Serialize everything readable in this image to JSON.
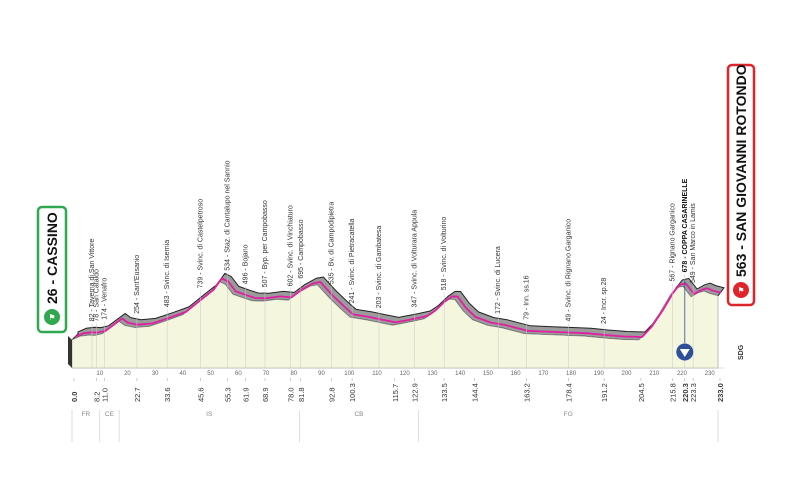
{
  "chart_data": {
    "type": "area",
    "start": {
      "label": "CASSINO",
      "altitude": "26",
      "km": "0.0"
    },
    "finish": {
      "label": "SAN GIOVANNI ROTONDO",
      "altitude": "563",
      "km": "233.0"
    },
    "xlim": [
      0,
      233
    ],
    "ylim": [
      0,
      900
    ],
    "x_ticks": [
      10,
      20,
      30,
      40,
      50,
      60,
      70,
      80,
      90,
      100,
      110,
      120,
      130,
      140,
      150,
      160,
      170,
      180,
      190,
      200,
      210,
      220,
      230
    ],
    "y_ticks": [
      200,
      400,
      600
    ],
    "profile": [
      {
        "km": 0,
        "alt": 26
      },
      {
        "km": 3,
        "alt": 70
      },
      {
        "km": 6,
        "alt": 82
      },
      {
        "km": 8.2,
        "alt": 78
      },
      {
        "km": 11,
        "alt": 100
      },
      {
        "km": 14,
        "alt": 174
      },
      {
        "km": 17,
        "alt": 250
      },
      {
        "km": 19,
        "alt": 200
      },
      {
        "km": 22.7,
        "alt": 174
      },
      {
        "km": 28,
        "alt": 190
      },
      {
        "km": 33.6,
        "alt": 254
      },
      {
        "km": 40,
        "alt": 330
      },
      {
        "km": 45.6,
        "alt": 483
      },
      {
        "km": 50,
        "alt": 600
      },
      {
        "km": 53,
        "alt": 739
      },
      {
        "km": 55.3,
        "alt": 700
      },
      {
        "km": 58,
        "alt": 580
      },
      {
        "km": 61.9,
        "alt": 534
      },
      {
        "km": 65,
        "alt": 500
      },
      {
        "km": 68.9,
        "alt": 496
      },
      {
        "km": 74,
        "alt": 520
      },
      {
        "km": 78,
        "alt": 507
      },
      {
        "km": 81.8,
        "alt": 602
      },
      {
        "km": 86,
        "alt": 680
      },
      {
        "km": 88.5,
        "alt": 695
      },
      {
        "km": 92.8,
        "alt": 535
      },
      {
        "km": 97,
        "alt": 400
      },
      {
        "km": 100.3,
        "alt": 300
      },
      {
        "km": 106,
        "alt": 270
      },
      {
        "km": 110,
        "alt": 241
      },
      {
        "km": 115.7,
        "alt": 203
      },
      {
        "km": 122.9,
        "alt": 250
      },
      {
        "km": 127,
        "alt": 280
      },
      {
        "km": 130,
        "alt": 347
      },
      {
        "km": 133.5,
        "alt": 460
      },
      {
        "km": 136,
        "alt": 520
      },
      {
        "km": 138,
        "alt": 518
      },
      {
        "km": 141,
        "alt": 380
      },
      {
        "km": 144.4,
        "alt": 270
      },
      {
        "km": 150,
        "alt": 200
      },
      {
        "km": 155,
        "alt": 172
      },
      {
        "km": 163.2,
        "alt": 100
      },
      {
        "km": 170,
        "alt": 90
      },
      {
        "km": 178.4,
        "alt": 79
      },
      {
        "km": 185,
        "alt": 70
      },
      {
        "km": 191.2,
        "alt": 49
      },
      {
        "km": 198,
        "alt": 30
      },
      {
        "km": 204.5,
        "alt": 24
      },
      {
        "km": 208,
        "alt": 150
      },
      {
        "km": 212,
        "alt": 350
      },
      {
        "km": 215.8,
        "alt": 567
      },
      {
        "km": 218,
        "alt": 660
      },
      {
        "km": 220.3,
        "alt": 678
      },
      {
        "km": 223.3,
        "alt": 549
      },
      {
        "km": 226,
        "alt": 600
      },
      {
        "km": 228,
        "alt": 620
      },
      {
        "km": 230,
        "alt": 590
      },
      {
        "km": 233,
        "alt": 563
      }
    ],
    "waypoints": [
      {
        "km": 6.5,
        "label": "82 - Taverna di San Vittore"
      },
      {
        "km": 8.2,
        "label": "78 - San Cataldo"
      },
      {
        "km": 11.0,
        "label": "174 - Venafro"
      },
      {
        "km": 22.7,
        "label": "254 - Sant'Eusanio"
      },
      {
        "km": 33.6,
        "label": "483 - Svinc. di Isernia"
      },
      {
        "km": 45.6,
        "label": "739 - Svinc. di Castelpetroso"
      },
      {
        "km": 55.3,
        "label": "534 - Staz. di Cantalupo nel Sannio"
      },
      {
        "km": 61.9,
        "label": "496 - Bojano"
      },
      {
        "km": 68.9,
        "label": "507 - Byp. per Campobasso"
      },
      {
        "km": 78.0,
        "label": "602 - Svinc. di Vinchiaturo"
      },
      {
        "km": 81.8,
        "label": "695 - Campobasso"
      },
      {
        "km": 92.8,
        "label": "535 - Bv. di Campodipietra"
      },
      {
        "km": 100.3,
        "label": "241 - Svinc. di Pietracatella"
      },
      {
        "km": 110.0,
        "label": "203 - Svinc. di Gambatesa"
      },
      {
        "km": 122.9,
        "label": "347 - Svinc. di Volturara Appula"
      },
      {
        "km": 133.5,
        "label": "518 - Svinc. di Volturino"
      },
      {
        "km": 153.0,
        "label": "172 - Svinc. di Lucera"
      },
      {
        "km": 163.2,
        "label": "79 - Inn. ss.16"
      },
      {
        "km": 178.4,
        "label": "49 - Svinc. di Rignano Garganico"
      },
      {
        "km": 191.2,
        "label": "24 - Incr. sp.28"
      },
      {
        "km": 215.8,
        "label": "567 - Rignano Garganico"
      },
      {
        "km": 220.3,
        "label": "678 - COPPA CASARINELLE",
        "bold": true
      },
      {
        "km": 223.3,
        "label": "549 - San Marco in Lamis"
      }
    ],
    "km_labels": [
      {
        "km": 0,
        "text": "0.0",
        "bold": true
      },
      {
        "km": 8.2,
        "text": "8.2"
      },
      {
        "km": 11.0,
        "text": "11.0"
      },
      {
        "km": 22.7,
        "text": "22.7"
      },
      {
        "km": 33.6,
        "text": "33.6"
      },
      {
        "km": 45.6,
        "text": "45.6"
      },
      {
        "km": 55.3,
        "text": "55.3"
      },
      {
        "km": 61.9,
        "text": "61.9"
      },
      {
        "km": 68.9,
        "text": "68.9"
      },
      {
        "km": 78.0,
        "text": "78.0"
      },
      {
        "km": 81.8,
        "text": "81.8"
      },
      {
        "km": 92.8,
        "text": "92.8"
      },
      {
        "km": 100.3,
        "text": "100.3"
      },
      {
        "km": 115.7,
        "text": "115.7"
      },
      {
        "km": 122.9,
        "text": "122.9"
      },
      {
        "km": 133.5,
        "text": "133.5"
      },
      {
        "km": 144.4,
        "text": "144.4"
      },
      {
        "km": 163.2,
        "text": "163.2"
      },
      {
        "km": 178.4,
        "text": "178.4"
      },
      {
        "km": 191.2,
        "text": "191.2"
      },
      {
        "km": 204.5,
        "text": "204.5"
      },
      {
        "km": 215.8,
        "text": "215.8"
      },
      {
        "km": 220.3,
        "text": "220.3",
        "bold": true
      },
      {
        "km": 223.3,
        "text": "223.3"
      },
      {
        "km": 233.0,
        "text": "233.0",
        "bold": true
      }
    ],
    "regions": [
      {
        "label": "FR",
        "from": 0,
        "to": 10
      },
      {
        "label": "CE",
        "from": 10,
        "to": 17
      },
      {
        "label": "IS",
        "from": 17,
        "to": 82
      },
      {
        "label": "CB",
        "from": 82,
        "to": 125
      },
      {
        "label": "FG",
        "from": 125,
        "to": 233
      }
    ],
    "gpm_km": 220.3,
    "logo": "SDG",
    "colors": {
      "profile_fill": "#f4f7de",
      "profile_top": "#9b9b9b",
      "road": "#e020a0",
      "start_border": "#2fa84f",
      "finish_border": "#e0242b",
      "gpm_marker": "#2f4f9a"
    }
  }
}
